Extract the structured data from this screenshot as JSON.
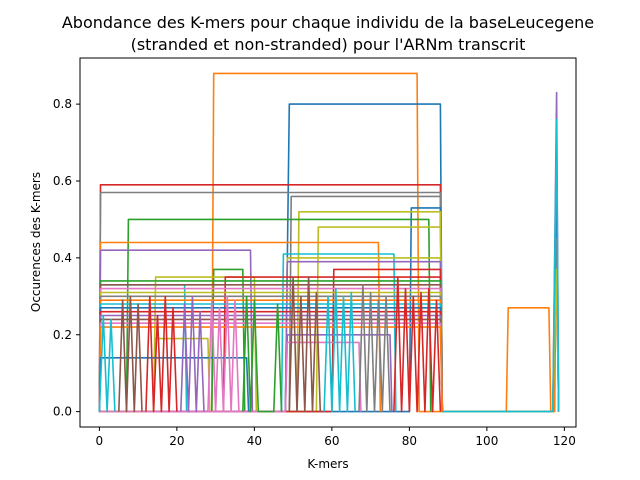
{
  "chart_data": {
    "type": "line",
    "title_line1": "Abondance des K-mers pour chaque individu de la baseLeucegene",
    "title_line2": "(stranded et non-stranded) pour l'ARNm transcrit",
    "xlabel": "K-mers",
    "ylabel": "Occurences des K-mers",
    "xlim": [
      -5,
      123
    ],
    "ylim": [
      -0.04,
      0.92
    ],
    "x_ticks": [
      0,
      20,
      40,
      60,
      80,
      100,
      120
    ],
    "y_ticks": [
      0.0,
      0.2,
      0.4,
      0.6,
      0.8
    ],
    "y_tick_labels": [
      "0.0",
      "0.2",
      "0.4",
      "0.6",
      "0.8"
    ],
    "grid": false,
    "series": [
      {
        "color": "#ff7f0e",
        "points": [
          [
            0,
            0
          ],
          [
            29,
            0
          ],
          [
            29.5,
            0.88
          ],
          [
            82,
            0.88
          ],
          [
            82.5,
            0
          ],
          [
            105,
            0
          ],
          [
            105.5,
            0.27
          ],
          [
            116,
            0.27
          ],
          [
            116.5,
            0
          ],
          [
            117.5,
            0
          ],
          [
            118,
            0.55
          ],
          [
            118.5,
            0
          ]
        ]
      },
      {
        "color": "#1f77b4",
        "points": [
          [
            0,
            0
          ],
          [
            48,
            0
          ],
          [
            49,
            0.8
          ],
          [
            88,
            0.8
          ],
          [
            88.5,
            0
          ],
          [
            117,
            0
          ],
          [
            118,
            0.58
          ],
          [
            118.5,
            0
          ]
        ]
      },
      {
        "color": "#d62728",
        "points": [
          [
            0,
            0
          ],
          [
            0.3,
            0.59
          ],
          [
            88,
            0.59
          ],
          [
            88.5,
            0
          ],
          [
            117,
            0
          ],
          [
            118,
            0.38
          ],
          [
            118.5,
            0
          ]
        ]
      },
      {
        "color": "#7f7f7f",
        "points": [
          [
            0,
            0
          ],
          [
            0.3,
            0.57
          ],
          [
            88,
            0.57
          ],
          [
            88.5,
            0
          ],
          [
            117,
            0
          ],
          [
            118,
            0.45
          ],
          [
            118.5,
            0
          ]
        ]
      },
      {
        "color": "#7f7f7f",
        "points": [
          [
            0,
            0
          ],
          [
            49,
            0
          ],
          [
            49.5,
            0.56
          ],
          [
            88,
            0.56
          ],
          [
            88.5,
            0
          ]
        ]
      },
      {
        "color": "#1f77b4",
        "points": [
          [
            0,
            0
          ],
          [
            80,
            0
          ],
          [
            80.5,
            0.53
          ],
          [
            88,
            0.53
          ],
          [
            88.5,
            0
          ]
        ]
      },
      {
        "color": "#bcbd22",
        "points": [
          [
            0,
            0
          ],
          [
            51,
            0
          ],
          [
            51.5,
            0.52
          ],
          [
            88,
            0.52
          ],
          [
            88.5,
            0
          ]
        ]
      },
      {
        "color": "#2ca02c",
        "points": [
          [
            0,
            0
          ],
          [
            7,
            0
          ],
          [
            7.5,
            0.5
          ],
          [
            85,
            0.5
          ],
          [
            85.5,
            0
          ]
        ]
      },
      {
        "color": "#bcbd22",
        "points": [
          [
            0,
            0
          ],
          [
            56,
            0
          ],
          [
            56.5,
            0.48
          ],
          [
            88,
            0.48
          ],
          [
            88.5,
            0
          ]
        ]
      },
      {
        "color": "#ff7f0e",
        "points": [
          [
            0,
            0
          ],
          [
            0.3,
            0.44
          ],
          [
            72,
            0.44
          ],
          [
            72.5,
            0
          ]
        ]
      },
      {
        "color": "#9467bd",
        "points": [
          [
            0,
            0
          ],
          [
            0.3,
            0.42
          ],
          [
            39,
            0.42
          ],
          [
            39.5,
            0
          ]
        ]
      },
      {
        "color": "#17becf",
        "points": [
          [
            0,
            0
          ],
          [
            47,
            0
          ],
          [
            47.5,
            0.41
          ],
          [
            76,
            0.41
          ],
          [
            76.5,
            0
          ]
        ]
      },
      {
        "color": "#bcbd22",
        "points": [
          [
            0,
            0
          ],
          [
            48,
            0
          ],
          [
            48.5,
            0.4
          ],
          [
            88,
            0.4
          ],
          [
            88.5,
            0
          ]
        ]
      },
      {
        "color": "#9467bd",
        "points": [
          [
            0,
            0
          ],
          [
            48,
            0
          ],
          [
            48.5,
            0.39
          ],
          [
            88,
            0.39
          ],
          [
            88.5,
            0
          ],
          [
            117,
            0
          ],
          [
            118,
            0.83
          ],
          [
            118.5,
            0
          ]
        ]
      },
      {
        "color": "#2ca02c",
        "points": [
          [
            0,
            0
          ],
          [
            29,
            0
          ],
          [
            29.5,
            0.37
          ],
          [
            37,
            0.37
          ],
          [
            37.5,
            0
          ]
        ]
      },
      {
        "color": "#d62728",
        "points": [
          [
            0,
            0
          ],
          [
            60,
            0
          ],
          [
            60.5,
            0.37
          ],
          [
            88,
            0.37
          ],
          [
            88.5,
            0
          ]
        ]
      },
      {
        "color": "#bcbd22",
        "points": [
          [
            0,
            0
          ],
          [
            14,
            0
          ],
          [
            14.5,
            0.35
          ],
          [
            40,
            0.35
          ],
          [
            40.5,
            0
          ]
        ]
      },
      {
        "color": "#d62728",
        "points": [
          [
            0,
            0
          ],
          [
            32,
            0
          ],
          [
            32.5,
            0.35
          ],
          [
            88,
            0.35
          ],
          [
            88.5,
            0
          ]
        ]
      },
      {
        "color": "#2ca02c",
        "points": [
          [
            0,
            0
          ],
          [
            0.3,
            0.34
          ],
          [
            88,
            0.34
          ],
          [
            88.5,
            0
          ]
        ]
      },
      {
        "color": "#17becf",
        "points": [
          [
            0,
            0
          ],
          [
            0.3,
            0.33
          ],
          [
            22,
            0.33
          ],
          [
            22.5,
            0
          ]
        ]
      },
      {
        "color": "#8c564b",
        "points": [
          [
            0,
            0
          ],
          [
            0.3,
            0.33
          ],
          [
            88,
            0.33
          ],
          [
            88.5,
            0
          ]
        ]
      },
      {
        "color": "#e377c2",
        "points": [
          [
            0,
            0
          ],
          [
            0.3,
            0.32
          ],
          [
            88,
            0.32
          ],
          [
            88.5,
            0
          ]
        ]
      },
      {
        "color": "#bcbd22",
        "points": [
          [
            0,
            0
          ],
          [
            0.3,
            0.31
          ],
          [
            88,
            0.31
          ],
          [
            88.5,
            0
          ],
          [
            117,
            0
          ],
          [
            118,
            0.37
          ],
          [
            118.5,
            0
          ]
        ]
      },
      {
        "color": "#7f7f7f",
        "points": [
          [
            0,
            0
          ],
          [
            0.3,
            0.3
          ],
          [
            88,
            0.3
          ],
          [
            88.5,
            0
          ]
        ]
      },
      {
        "color": "#ff7f0e",
        "points": [
          [
            0,
            0
          ],
          [
            0.3,
            0.29
          ],
          [
            88,
            0.29
          ],
          [
            88.5,
            0
          ]
        ]
      },
      {
        "color": "#17becf",
        "points": [
          [
            0,
            0
          ],
          [
            0.3,
            0.28
          ],
          [
            88,
            0.28
          ],
          [
            88.5,
            0
          ],
          [
            117,
            0
          ],
          [
            118,
            0.76
          ],
          [
            118.5,
            0
          ]
        ]
      },
      {
        "color": "#1f77b4",
        "points": [
          [
            0,
            0
          ],
          [
            0.3,
            0.27
          ],
          [
            88,
            0.27
          ],
          [
            88.5,
            0
          ]
        ]
      },
      {
        "color": "#d62728",
        "points": [
          [
            0,
            0
          ],
          [
            0.3,
            0.26
          ],
          [
            88,
            0.26
          ],
          [
            88.5,
            0
          ]
        ]
      },
      {
        "color": "#9467bd",
        "points": [
          [
            0,
            0
          ],
          [
            0.3,
            0.25
          ],
          [
            88,
            0.25
          ],
          [
            88.5,
            0
          ]
        ]
      },
      {
        "color": "#8c564b",
        "points": [
          [
            0,
            0
          ],
          [
            0.3,
            0.24
          ],
          [
            88,
            0.24
          ],
          [
            88.5,
            0
          ]
        ]
      },
      {
        "color": "#e377c2",
        "points": [
          [
            0,
            0
          ],
          [
            0.3,
            0.23
          ],
          [
            88,
            0.23
          ],
          [
            88.5,
            0
          ]
        ]
      },
      {
        "color": "#ff7f0e",
        "points": [
          [
            0,
            0
          ],
          [
            0.3,
            0.22
          ],
          [
            88,
            0.22
          ],
          [
            88.5,
            0
          ]
        ]
      },
      {
        "color": "#9467bd",
        "points": [
          [
            0,
            0
          ],
          [
            48,
            0
          ],
          [
            48.5,
            0.2
          ],
          [
            75,
            0.2
          ],
          [
            75.5,
            0
          ]
        ]
      },
      {
        "color": "#bcbd22",
        "points": [
          [
            0,
            0
          ],
          [
            14,
            0
          ],
          [
            14.5,
            0.19
          ],
          [
            28,
            0.19
          ],
          [
            28.5,
            0
          ]
        ]
      },
      {
        "color": "#e377c2",
        "points": [
          [
            0,
            0
          ],
          [
            48,
            0
          ],
          [
            48.5,
            0.18
          ],
          [
            67,
            0.18
          ],
          [
            67.5,
            0
          ]
        ]
      },
      {
        "color": "#1f77b4",
        "points": [
          [
            0,
            0
          ],
          [
            0.3,
            0.14
          ],
          [
            38,
            0.14
          ],
          [
            38.5,
            0
          ]
        ]
      },
      {
        "color": "#17becf",
        "points": [
          [
            0,
            0
          ],
          [
            1,
            0.25
          ],
          [
            2,
            0
          ],
          [
            3,
            0.24
          ],
          [
            4,
            0
          ]
        ]
      },
      {
        "color": "#8c564b",
        "points": [
          [
            5,
            0
          ],
          [
            6,
            0.29
          ],
          [
            7,
            0
          ],
          [
            8,
            0.3
          ],
          [
            9,
            0
          ],
          [
            10,
            0.28
          ],
          [
            11,
            0
          ]
        ]
      },
      {
        "color": "#d62728",
        "points": [
          [
            12,
            0
          ],
          [
            13,
            0.3
          ],
          [
            14,
            0
          ],
          [
            15,
            0.25
          ],
          [
            16,
            0
          ],
          [
            17,
            0.3
          ],
          [
            18,
            0
          ],
          [
            19,
            0.27
          ],
          [
            20,
            0
          ]
        ]
      },
      {
        "color": "#9467bd",
        "points": [
          [
            21,
            0
          ],
          [
            22,
            0.28
          ],
          [
            23,
            0
          ],
          [
            24,
            0.3
          ],
          [
            25,
            0
          ],
          [
            26,
            0.26
          ],
          [
            27,
            0
          ]
        ]
      },
      {
        "color": "#e377c2",
        "points": [
          [
            28,
            0
          ],
          [
            29,
            0.29
          ],
          [
            30,
            0
          ],
          [
            31,
            0.27
          ],
          [
            32,
            0
          ],
          [
            33,
            0.3
          ],
          [
            34,
            0
          ],
          [
            35,
            0.29
          ],
          [
            36,
            0
          ]
        ]
      },
      {
        "color": "#2ca02c",
        "points": [
          [
            37,
            0
          ],
          [
            38,
            0.3
          ],
          [
            39,
            0
          ],
          [
            40,
            0.29
          ],
          [
            41,
            0
          ],
          [
            45,
            0
          ],
          [
            46,
            0.28
          ],
          [
            47,
            0
          ]
        ]
      },
      {
        "color": "#8c564b",
        "points": [
          [
            49,
            0
          ],
          [
            50,
            0.35
          ],
          [
            51,
            0
          ],
          [
            52,
            0.3
          ],
          [
            53,
            0
          ],
          [
            54,
            0.35
          ],
          [
            55,
            0
          ],
          [
            56,
            0.31
          ],
          [
            57,
            0
          ]
        ]
      },
      {
        "color": "#17becf",
        "points": [
          [
            58,
            0
          ],
          [
            59,
            0.3
          ],
          [
            60,
            0
          ],
          [
            61,
            0.32
          ],
          [
            62,
            0
          ],
          [
            63,
            0.3
          ],
          [
            64,
            0
          ],
          [
            65,
            0.31
          ],
          [
            66,
            0
          ]
        ]
      },
      {
        "color": "#7f7f7f",
        "points": [
          [
            67,
            0
          ],
          [
            68,
            0.33
          ],
          [
            69,
            0
          ],
          [
            70,
            0.31
          ],
          [
            71,
            0
          ],
          [
            72,
            0.29
          ],
          [
            73,
            0
          ],
          [
            74,
            0.3
          ],
          [
            75,
            0
          ]
        ]
      },
      {
        "color": "#d62728",
        "points": [
          [
            76,
            0
          ],
          [
            77,
            0.35
          ],
          [
            78,
            0
          ],
          [
            79,
            0.32
          ],
          [
            80,
            0
          ],
          [
            81,
            0.3
          ],
          [
            82,
            0
          ],
          [
            83,
            0.31
          ],
          [
            84,
            0
          ],
          [
            85,
            0.32
          ],
          [
            86,
            0
          ],
          [
            87,
            0.29
          ],
          [
            88,
            0
          ]
        ]
      }
    ]
  }
}
